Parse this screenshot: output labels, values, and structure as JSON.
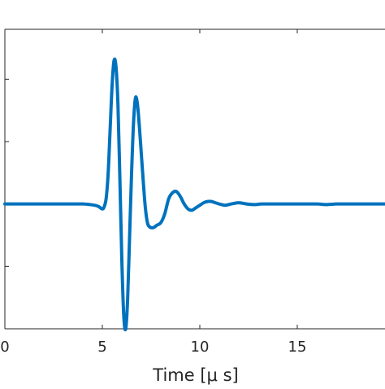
{
  "chart_data": {
    "type": "line",
    "title": "",
    "xlabel": "Time [μ s]",
    "ylabel": "",
    "xlim": [
      0,
      19.5
    ],
    "ylim": [
      -1.0,
      1.4
    ],
    "xticks": [
      0,
      5,
      10,
      15
    ],
    "xtick_labels": [
      "0",
      "5",
      "10",
      "15"
    ],
    "yticks": [
      -1.0,
      -0.5,
      0.5,
      1.0
    ],
    "grid": false,
    "legend": "none",
    "series": [
      {
        "color": "#0072BD",
        "x": [
          0,
          1,
          2,
          3,
          4,
          4.6,
          4.8,
          5.0,
          5.1,
          5.2,
          5.3,
          5.4,
          5.5,
          5.6,
          5.7,
          5.8,
          5.9,
          6.0,
          6.1,
          6.2,
          6.3,
          6.4,
          6.5,
          6.6,
          6.7,
          6.8,
          6.9,
          7.0,
          7.1,
          7.2,
          7.3,
          7.4,
          7.6,
          7.8,
          8.0,
          8.2,
          8.4,
          8.6,
          8.8,
          9.0,
          9.2,
          9.4,
          9.6,
          9.8,
          10.0,
          10.2,
          10.4,
          10.6,
          10.8,
          11.0,
          11.3,
          11.6,
          12.0,
          12.4,
          12.8,
          13.2,
          14.0,
          15.0,
          16.0,
          16.5,
          17.0,
          17.5,
          18.0,
          19.0,
          19.5
        ],
        "y": [
          0.0,
          0.0,
          0.0,
          0.0,
          0.0,
          -0.01,
          -0.02,
          -0.04,
          -0.02,
          0.05,
          0.25,
          0.6,
          0.95,
          1.15,
          1.1,
          0.8,
          0.2,
          -0.45,
          -0.9,
          -1.0,
          -0.75,
          -0.25,
          0.25,
          0.65,
          0.85,
          0.8,
          0.62,
          0.4,
          0.18,
          -0.02,
          -0.14,
          -0.18,
          -0.19,
          -0.17,
          -0.15,
          -0.08,
          0.04,
          0.09,
          0.1,
          0.06,
          0.0,
          -0.04,
          -0.05,
          -0.03,
          -0.01,
          0.01,
          0.02,
          0.02,
          0.01,
          0.0,
          -0.01,
          0.0,
          0.01,
          0.0,
          -0.005,
          0.0,
          0.0,
          0.0,
          0.0,
          -0.005,
          0.0,
          0.0,
          0.0,
          0.0,
          0.0
        ]
      }
    ]
  }
}
